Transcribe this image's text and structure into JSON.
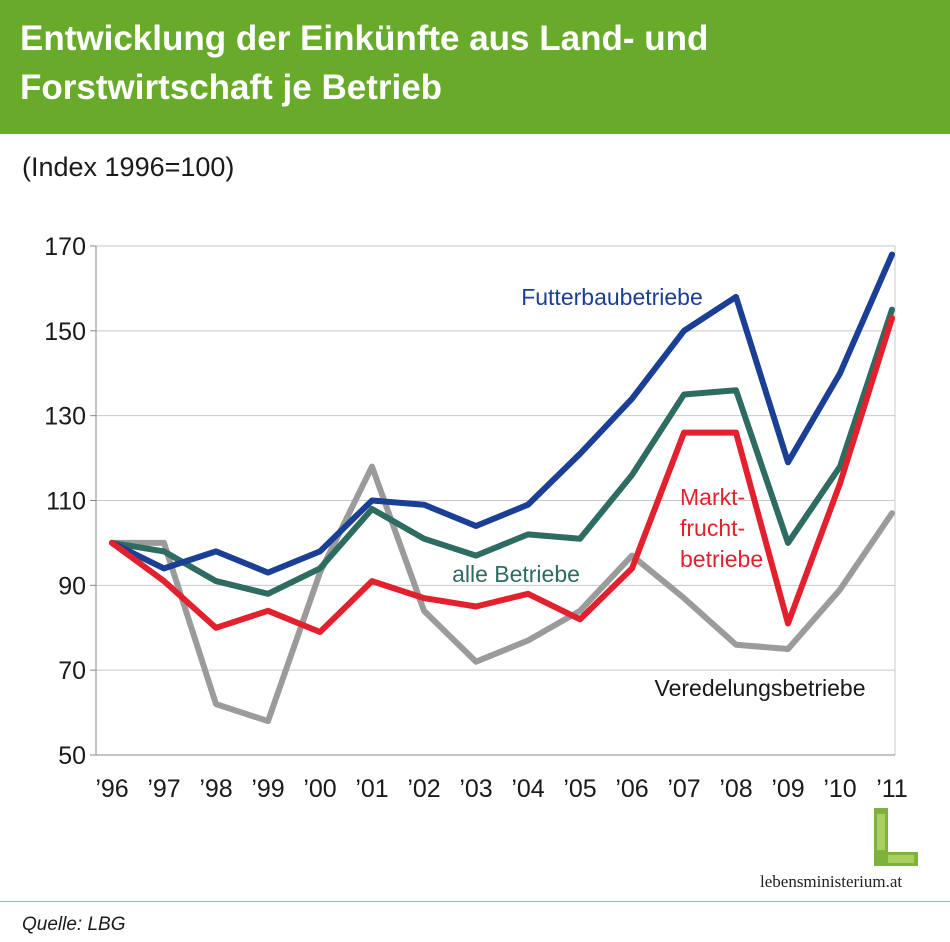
{
  "header": {
    "title_line1": "Entwicklung der Einkünfte aus Land- und",
    "title_line2": "Forstwirtschaft je Betrieb",
    "background_color": "#68ab2a"
  },
  "subtitle": "(Index 1996=100)",
  "chart_data": {
    "type": "line",
    "categories": [
      "’96",
      "’97",
      "’98",
      "’99",
      "’00",
      "’01",
      "’02",
      "’03",
      "’04",
      "’05",
      "’06",
      "’07",
      "’08",
      "’09",
      "’10",
      "’11"
    ],
    "ylim": [
      50,
      170
    ],
    "yticks": [
      50,
      70,
      90,
      110,
      130,
      150,
      170
    ],
    "grid": true,
    "series": [
      {
        "name": "Futterbaubetriebe",
        "color": "#1b3f95",
        "values": [
          100,
          94,
          98,
          93,
          98,
          110,
          109,
          104,
          109,
          121,
          134,
          150,
          158,
          119,
          140,
          168
        ]
      },
      {
        "name": "alle Betriebe",
        "color": "#2e6b60",
        "values": [
          100,
          98,
          91,
          88,
          94,
          108,
          101,
          97,
          102,
          101,
          116,
          135,
          136,
          100,
          118,
          155
        ]
      },
      {
        "name": "Markt-\nfrucht-\nbetriebe",
        "color": "#e3202d",
        "values": [
          100,
          91,
          80,
          84,
          79,
          91,
          87,
          85,
          88,
          82,
          94,
          126,
          126,
          81,
          114,
          153
        ]
      },
      {
        "name": "Veredelungsbetriebe",
        "color": "#9b9b9b",
        "values": [
          100,
          100,
          62,
          58,
          93,
          118,
          84,
          72,
          77,
          84,
          97,
          87,
          76,
          75,
          89,
          107
        ]
      }
    ]
  },
  "logo": {
    "text": "lebensministerium.at"
  },
  "source": "Quelle: LBG"
}
